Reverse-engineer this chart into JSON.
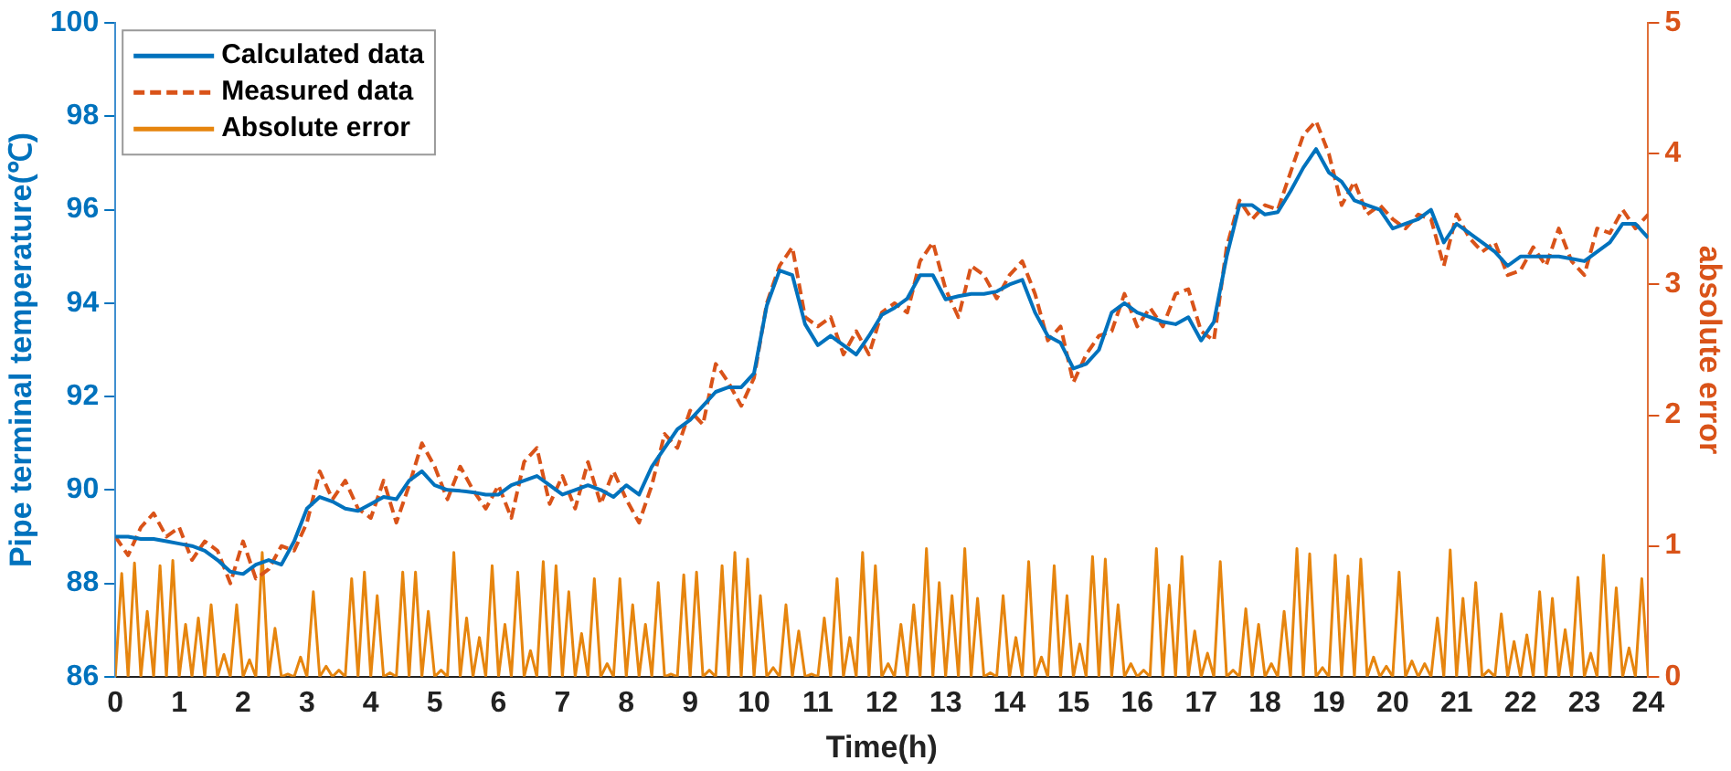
{
  "chart_data": {
    "type": "line",
    "xlabel": "Time(h)",
    "ylabel": "Pipe terminal temperature(℃)",
    "y2label": "absolute error",
    "xlim": [
      0,
      24
    ],
    "xticks": [
      0,
      1,
      2,
      3,
      4,
      5,
      6,
      7,
      8,
      9,
      10,
      11,
      12,
      13,
      14,
      15,
      16,
      17,
      18,
      19,
      20,
      21,
      22,
      23,
      24
    ],
    "ylim": [
      86,
      100
    ],
    "yticks": [
      86,
      88,
      90,
      92,
      94,
      96,
      98,
      100
    ],
    "y2lim": [
      0,
      5
    ],
    "y2ticks": [
      0,
      1,
      2,
      3,
      4,
      5
    ],
    "legend": "top left",
    "grid": false,
    "x": [
      0,
      0.2,
      0.4,
      0.6,
      0.8,
      1,
      1.2,
      1.4,
      1.6,
      1.8,
      2,
      2.2,
      2.4,
      2.6,
      2.8,
      3,
      3.2,
      3.4,
      3.6,
      3.8,
      4,
      4.2,
      4.4,
      4.6,
      4.8,
      5,
      5.2,
      5.4,
      5.6,
      5.8,
      6,
      6.2,
      6.4,
      6.6,
      6.8,
      7,
      7.2,
      7.4,
      7.6,
      7.8,
      8,
      8.2,
      8.4,
      8.6,
      8.8,
      9,
      9.2,
      9.4,
      9.6,
      9.8,
      10,
      10.2,
      10.4,
      10.6,
      10.8,
      11,
      11.2,
      11.4,
      11.6,
      11.8,
      12,
      12.2,
      12.4,
      12.6,
      12.8,
      13,
      13.2,
      13.4,
      13.6,
      13.8,
      14,
      14.2,
      14.4,
      14.6,
      14.8,
      15,
      15.2,
      15.4,
      15.6,
      15.8,
      16,
      16.2,
      16.4,
      16.6,
      16.8,
      17,
      17.2,
      17.4,
      17.6,
      17.8,
      18,
      18.2,
      18.4,
      18.6,
      18.8,
      19,
      19.2,
      19.4,
      19.6,
      19.8,
      20,
      20.2,
      20.4,
      20.6,
      20.8,
      21,
      21.2,
      21.4,
      21.6,
      21.8,
      22,
      22.2,
      22.4,
      22.6,
      22.8,
      23,
      23.2,
      23.4,
      23.6,
      23.8,
      24
    ],
    "series": [
      {
        "name": "Calculated data",
        "color": "#0072bd",
        "line_style": "solid",
        "values": [
          89.0,
          89.0,
          88.95,
          88.95,
          88.9,
          88.85,
          88.8,
          88.7,
          88.5,
          88.25,
          88.2,
          88.4,
          88.5,
          88.4,
          88.9,
          89.6,
          89.85,
          89.75,
          89.6,
          89.55,
          89.7,
          89.85,
          89.8,
          90.2,
          90.4,
          90.1,
          90.0,
          89.98,
          89.95,
          89.9,
          89.9,
          90.1,
          90.2,
          90.3,
          90.1,
          89.9,
          90.0,
          90.1,
          90.0,
          89.85,
          90.1,
          89.9,
          90.5,
          90.9,
          91.3,
          91.5,
          91.8,
          92.1,
          92.2,
          92.2,
          92.5,
          93.95,
          94.7,
          94.6,
          93.55,
          93.1,
          93.3,
          93.1,
          92.9,
          93.3,
          93.75,
          93.9,
          94.1,
          94.6,
          94.6,
          94.08,
          94.15,
          94.2,
          94.2,
          94.25,
          94.4,
          94.5,
          93.8,
          93.3,
          93.15,
          92.6,
          92.7,
          93.0,
          93.8,
          94.0,
          93.8,
          93.7,
          93.6,
          93.55,
          93.7,
          93.2,
          93.6,
          95.0,
          96.1,
          96.1,
          95.9,
          95.95,
          96.4,
          96.9,
          97.3,
          96.8,
          96.6,
          96.2,
          96.1,
          96.0,
          95.6,
          95.7,
          95.8,
          96.0,
          95.3,
          95.7,
          95.5,
          95.3,
          95.1,
          94.8,
          95.0,
          95.0,
          95.0,
          95.0,
          94.95,
          94.9,
          95.1,
          95.3,
          95.7,
          95.7,
          95.4
        ]
      },
      {
        "name": "Measured data",
        "color": "#d95319",
        "line_style": "dashed",
        "values": [
          89.0,
          88.6,
          89.2,
          89.5,
          89.0,
          89.2,
          88.5,
          88.9,
          88.7,
          88.0,
          88.9,
          88.1,
          88.3,
          88.8,
          88.7,
          89.3,
          90.4,
          89.8,
          90.2,
          89.6,
          89.4,
          90.2,
          89.3,
          90.1,
          91.0,
          90.5,
          89.8,
          90.5,
          90.0,
          89.6,
          90.1,
          89.4,
          90.6,
          90.9,
          89.7,
          90.3,
          89.6,
          90.6,
          89.7,
          90.4,
          89.8,
          89.3,
          90.1,
          91.2,
          90.9,
          91.7,
          91.4,
          92.7,
          92.3,
          91.8,
          92.4,
          94.0,
          94.8,
          95.2,
          93.7,
          93.5,
          93.7,
          92.9,
          93.4,
          92.9,
          93.8,
          94.0,
          93.8,
          94.9,
          95.3,
          94.3,
          93.7,
          94.8,
          94.6,
          94.1,
          94.6,
          94.9,
          94.2,
          93.2,
          93.5,
          92.3,
          92.9,
          93.3,
          93.4,
          94.2,
          93.5,
          93.9,
          93.5,
          94.2,
          94.3,
          93.4,
          93.2,
          95.2,
          96.2,
          95.8,
          96.1,
          96.0,
          96.8,
          97.6,
          97.9,
          97.2,
          96.1,
          96.6,
          95.9,
          96.1,
          95.8,
          95.6,
          95.9,
          95.8,
          94.8,
          95.9,
          95.4,
          95.1,
          95.3,
          94.6,
          94.7,
          95.2,
          94.8,
          95.6,
          94.9,
          94.6,
          95.6,
          95.5,
          96.0,
          95.6,
          95.9
        ]
      },
      {
        "name": "Absolute error",
        "color": "#e6850e",
        "line_style": "solid",
        "axis": "y2",
        "x": [
          0,
          0.1,
          0.2,
          0.3,
          0.4,
          0.5,
          0.6,
          0.7,
          0.8,
          0.9,
          1,
          1.1,
          1.2,
          1.3,
          1.4,
          1.5,
          1.6,
          1.7,
          1.8,
          1.9,
          2,
          2.1,
          2.2,
          2.3,
          2.4,
          2.5,
          2.6,
          2.7,
          2.8,
          2.9,
          3,
          3.1,
          3.2,
          3.3,
          3.4,
          3.5,
          3.6,
          3.7,
          3.8,
          3.9,
          4,
          4.1,
          4.2,
          4.3,
          4.4,
          4.5,
          4.6,
          4.7,
          4.8,
          4.9,
          5,
          5.1,
          5.2,
          5.3,
          5.4,
          5.5,
          5.6,
          5.7,
          5.8,
          5.9,
          6,
          6.1,
          6.2,
          6.3,
          6.4,
          6.5,
          6.6,
          6.7,
          6.8,
          6.9,
          7,
          7.1,
          7.2,
          7.3,
          7.4,
          7.5,
          7.6,
          7.7,
          7.8,
          7.9,
          8,
          8.1,
          8.2,
          8.3,
          8.4,
          8.5,
          8.6,
          8.7,
          8.8,
          8.9,
          9,
          9.1,
          9.2,
          9.3,
          9.4,
          9.5,
          9.6,
          9.7,
          9.8,
          9.9,
          10,
          10.1,
          10.2,
          10.3,
          10.4,
          10.5,
          10.6,
          10.7,
          10.8,
          10.9,
          11,
          11.1,
          11.2,
          11.3,
          11.4,
          11.5,
          11.6,
          11.7,
          11.8,
          11.9,
          12,
          12.1,
          12.2,
          12.3,
          12.4,
          12.5,
          12.6,
          12.7,
          12.8,
          12.9,
          13,
          13.1,
          13.2,
          13.3,
          13.4,
          13.5,
          13.6,
          13.7,
          13.8,
          13.9,
          14,
          14.1,
          14.2,
          14.3,
          14.4,
          14.5,
          14.6,
          14.7,
          14.8,
          14.9,
          15,
          15.1,
          15.2,
          15.3,
          15.4,
          15.5,
          15.6,
          15.7,
          15.8,
          15.9,
          16,
          16.1,
          16.2,
          16.3,
          16.4,
          16.5,
          16.6,
          16.7,
          16.8,
          16.9,
          17,
          17.1,
          17.2,
          17.3,
          17.4,
          17.5,
          17.6,
          17.7,
          17.8,
          17.9,
          18,
          18.1,
          18.2,
          18.3,
          18.4,
          18.5,
          18.6,
          18.7,
          18.8,
          18.9,
          19,
          19.1,
          19.2,
          19.3,
          19.4,
          19.5,
          19.6,
          19.7,
          19.8,
          19.9,
          20,
          20.1,
          20.2,
          20.3,
          20.4,
          20.5,
          20.6,
          20.7,
          20.8,
          20.9,
          21,
          21.1,
          21.2,
          21.3,
          21.4,
          21.5,
          21.6,
          21.7,
          21.8,
          21.9,
          22,
          22.1,
          22.2,
          22.3,
          22.4,
          22.5,
          22.6,
          22.7,
          22.8,
          22.9,
          23,
          23.1,
          23.2,
          23.3,
          23.4,
          23.5,
          23.6,
          23.7,
          23.8,
          23.9,
          24
        ],
        "values": [
          0,
          0.79,
          0,
          0.87,
          0,
          0.5,
          0,
          0.85,
          0,
          0.89,
          0,
          0.4,
          0,
          0.45,
          0,
          0.55,
          0,
          0.17,
          0,
          0.55,
          0,
          0.13,
          0,
          0.95,
          0,
          0.37,
          0,
          0.02,
          0,
          0.15,
          0,
          0.65,
          0,
          0.08,
          0,
          0.05,
          0,
          0.75,
          0,
          0.8,
          0,
          0.62,
          0,
          0.03,
          0,
          0.8,
          0,
          0.8,
          0,
          0.5,
          0,
          0.05,
          0,
          0.95,
          0,
          0.45,
          0,
          0.3,
          0,
          0.85,
          0,
          0.4,
          0,
          0.8,
          0,
          0.2,
          0,
          0.88,
          0,
          0.85,
          0,
          0.65,
          0,
          0.33,
          0,
          0.75,
          0,
          0.1,
          0,
          0.75,
          0,
          0.55,
          0,
          0.4,
          0,
          0.72,
          0,
          0.02,
          0,
          0.78,
          0,
          0.8,
          0,
          0.05,
          0,
          0.85,
          0,
          0.95,
          0,
          0.9,
          0,
          0.62,
          0,
          0.07,
          0,
          0.55,
          0,
          0.35,
          0,
          0.02,
          0,
          0.45,
          0,
          0.75,
          0,
          0.3,
          0,
          0.95,
          0,
          0.85,
          0,
          0.1,
          0,
          0.4,
          0,
          0.55,
          0,
          0.98,
          0,
          0.72,
          0,
          0.62,
          0,
          0.98,
          0,
          0.6,
          0,
          0.03,
          0,
          0.62,
          0,
          0.3,
          0,
          0.88,
          0,
          0.15,
          0,
          0.85,
          0,
          0.62,
          0,
          0.25,
          0,
          0.92,
          0,
          0.9,
          0,
          0.55,
          0,
          0.1,
          0,
          0.05,
          0,
          0.98,
          0,
          0.7,
          0,
          0.92,
          0,
          0.35,
          0,
          0.18,
          0,
          0.88,
          0,
          0.05,
          0,
          0.52,
          0,
          0.4,
          0,
          0.1,
          0,
          0.5,
          0,
          0.98,
          0,
          0.94,
          0,
          0.07,
          0,
          0.93,
          0,
          0.77,
          0,
          0.9,
          0,
          0.15,
          0,
          0.08,
          0,
          0.8,
          0,
          0.12,
          0,
          0.1,
          0,
          0.45,
          0,
          0.97,
          0,
          0.6,
          0,
          0.72,
          0,
          0.05,
          0,
          0.48,
          0,
          0.27,
          0,
          0.32,
          0,
          0.65,
          0,
          0.6,
          0,
          0.36,
          0,
          0.76,
          0,
          0.18,
          0,
          0.93,
          0,
          0.68,
          0,
          0.22,
          0,
          0.75,
          0
        ]
      }
    ]
  }
}
